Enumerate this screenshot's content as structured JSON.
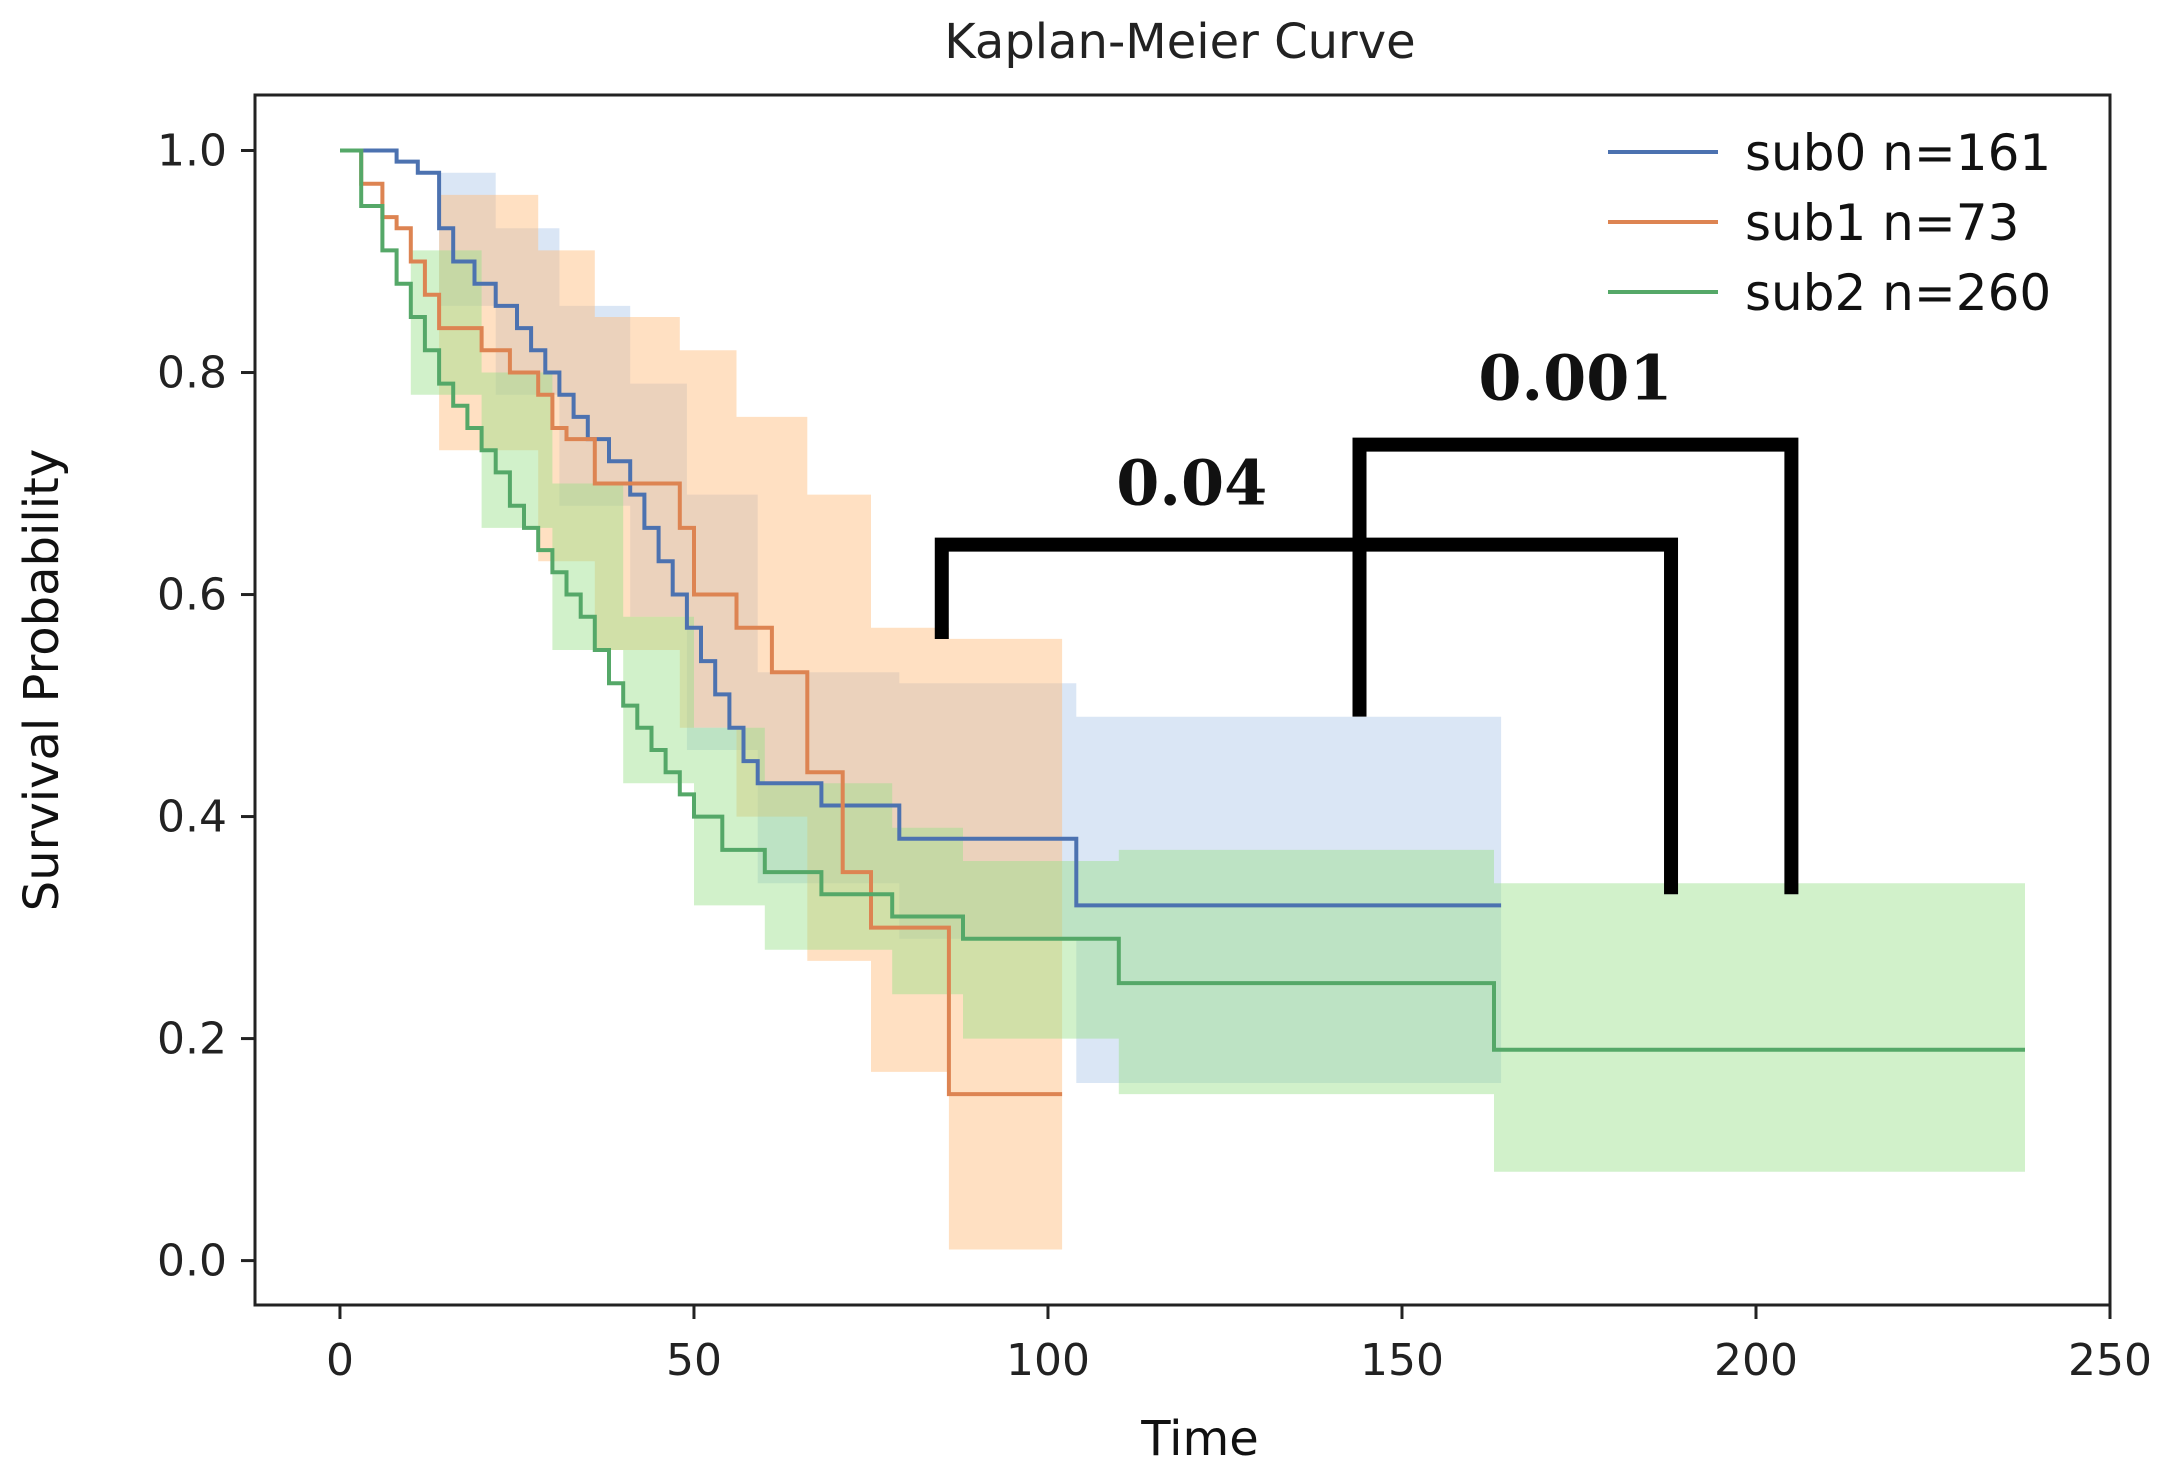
{
  "chart_data": {
    "type": "line",
    "subtype": "kaplan-meier-step",
    "title": "Kaplan-Meier Curve",
    "xlabel": "Time",
    "ylabel": "Survival Probability",
    "xlim": [
      -12,
      250
    ],
    "ylim": [
      -0.04,
      1.05
    ],
    "xticks": [
      0,
      50,
      100,
      150,
      200,
      250
    ],
    "yticks": [
      0.0,
      0.2,
      0.4,
      0.6,
      0.8,
      1.0
    ],
    "xtick_labels": [
      "0",
      "50",
      "100",
      "150",
      "200",
      "250"
    ],
    "ytick_labels": [
      "0.0",
      "0.2",
      "0.4",
      "0.6",
      "0.8",
      "1.0"
    ],
    "legend_position": "top-right",
    "series": [
      {
        "name": "sub0",
        "legend_label": "sub0  n=161",
        "n": 161,
        "color": "#4c72b0",
        "ci_color": "#aec7e8",
        "points": [
          [
            0,
            1.0
          ],
          [
            5,
            1.0
          ],
          [
            8,
            0.99
          ],
          [
            11,
            0.98
          ],
          [
            14,
            0.93
          ],
          [
            16,
            0.9
          ],
          [
            19,
            0.88
          ],
          [
            22,
            0.86
          ],
          [
            25,
            0.84
          ],
          [
            27,
            0.82
          ],
          [
            29,
            0.8
          ],
          [
            31,
            0.78
          ],
          [
            33,
            0.76
          ],
          [
            35,
            0.74
          ],
          [
            38,
            0.72
          ],
          [
            41,
            0.69
          ],
          [
            43,
            0.66
          ],
          [
            45,
            0.63
          ],
          [
            47,
            0.6
          ],
          [
            49,
            0.57
          ],
          [
            51,
            0.54
          ],
          [
            53,
            0.51
          ],
          [
            55,
            0.48
          ],
          [
            57,
            0.45
          ],
          [
            59,
            0.43
          ],
          [
            68,
            0.41
          ],
          [
            79,
            0.38
          ],
          [
            104,
            0.32
          ],
          [
            164,
            0.32
          ]
        ],
        "ci_upper": [
          [
            0,
            1.0
          ],
          [
            14,
            0.98
          ],
          [
            22,
            0.93
          ],
          [
            31,
            0.86
          ],
          [
            41,
            0.79
          ],
          [
            49,
            0.69
          ],
          [
            59,
            0.53
          ],
          [
            79,
            0.52
          ],
          [
            104,
            0.49
          ],
          [
            164,
            0.49
          ]
        ],
        "ci_lower": [
          [
            0,
            1.0
          ],
          [
            14,
            0.86
          ],
          [
            22,
            0.78
          ],
          [
            31,
            0.68
          ],
          [
            41,
            0.58
          ],
          [
            49,
            0.46
          ],
          [
            59,
            0.34
          ],
          [
            79,
            0.29
          ],
          [
            104,
            0.16
          ],
          [
            164,
            0.16
          ]
        ]
      },
      {
        "name": "sub1",
        "legend_label": "sub1  n=73",
        "n": 73,
        "color": "#dd8452",
        "ci_color": "#ffbb78",
        "points": [
          [
            0,
            1.0
          ],
          [
            3,
            0.97
          ],
          [
            6,
            0.94
          ],
          [
            8,
            0.93
          ],
          [
            10,
            0.9
          ],
          [
            12,
            0.87
          ],
          [
            14,
            0.84
          ],
          [
            20,
            0.82
          ],
          [
            24,
            0.8
          ],
          [
            28,
            0.78
          ],
          [
            30,
            0.75
          ],
          [
            32,
            0.74
          ],
          [
            36,
            0.7
          ],
          [
            43,
            0.7
          ],
          [
            48,
            0.66
          ],
          [
            50,
            0.6
          ],
          [
            56,
            0.57
          ],
          [
            61,
            0.53
          ],
          [
            66,
            0.44
          ],
          [
            71,
            0.35
          ],
          [
            75,
            0.3
          ],
          [
            86,
            0.15
          ],
          [
            102,
            0.15
          ]
        ],
        "ci_upper": [
          [
            0,
            1.0
          ],
          [
            14,
            0.96
          ],
          [
            28,
            0.91
          ],
          [
            36,
            0.85
          ],
          [
            48,
            0.82
          ],
          [
            56,
            0.76
          ],
          [
            66,
            0.69
          ],
          [
            75,
            0.57
          ],
          [
            86,
            0.56
          ],
          [
            102,
            0.45
          ]
        ],
        "ci_lower": [
          [
            0,
            1.0
          ],
          [
            14,
            0.73
          ],
          [
            28,
            0.63
          ],
          [
            36,
            0.55
          ],
          [
            48,
            0.48
          ],
          [
            56,
            0.4
          ],
          [
            66,
            0.27
          ],
          [
            75,
            0.17
          ],
          [
            86,
            0.01
          ],
          [
            102,
            0.01
          ]
        ]
      },
      {
        "name": "sub2",
        "legend_label": "sub2  n=260",
        "n": 260,
        "color": "#55a868",
        "ci_color": "#98df8a",
        "points": [
          [
            0,
            1.0
          ],
          [
            3,
            0.95
          ],
          [
            6,
            0.91
          ],
          [
            8,
            0.88
          ],
          [
            10,
            0.85
          ],
          [
            12,
            0.82
          ],
          [
            14,
            0.79
          ],
          [
            16,
            0.77
          ],
          [
            18,
            0.75
          ],
          [
            20,
            0.73
          ],
          [
            22,
            0.71
          ],
          [
            24,
            0.68
          ],
          [
            26,
            0.66
          ],
          [
            28,
            0.64
          ],
          [
            30,
            0.62
          ],
          [
            32,
            0.6
          ],
          [
            34,
            0.58
          ],
          [
            36,
            0.55
          ],
          [
            38,
            0.52
          ],
          [
            40,
            0.5
          ],
          [
            42,
            0.48
          ],
          [
            44,
            0.46
          ],
          [
            46,
            0.44
          ],
          [
            48,
            0.42
          ],
          [
            50,
            0.4
          ],
          [
            54,
            0.37
          ],
          [
            60,
            0.35
          ],
          [
            68,
            0.33
          ],
          [
            78,
            0.31
          ],
          [
            88,
            0.29
          ],
          [
            110,
            0.25
          ],
          [
            163,
            0.19
          ],
          [
            238,
            0.19
          ]
        ],
        "ci_upper": [
          [
            0,
            1.0
          ],
          [
            10,
            0.91
          ],
          [
            20,
            0.8
          ],
          [
            30,
            0.7
          ],
          [
            40,
            0.58
          ],
          [
            50,
            0.48
          ],
          [
            60,
            0.43
          ],
          [
            78,
            0.39
          ],
          [
            88,
            0.36
          ],
          [
            110,
            0.37
          ],
          [
            163,
            0.34
          ],
          [
            238,
            0.34
          ]
        ],
        "ci_lower": [
          [
            0,
            1.0
          ],
          [
            10,
            0.78
          ],
          [
            20,
            0.66
          ],
          [
            30,
            0.55
          ],
          [
            40,
            0.43
          ],
          [
            50,
            0.32
          ],
          [
            60,
            0.28
          ],
          [
            78,
            0.24
          ],
          [
            88,
            0.2
          ],
          [
            110,
            0.15
          ],
          [
            163,
            0.08
          ],
          [
            238,
            0.08
          ]
        ]
      }
    ],
    "annotations": [
      {
        "label": "0.04",
        "comparison": "sub0 vs sub1 bracket",
        "left_x": 85,
        "left_y_bottom": 0.56,
        "right_x": 188,
        "right_y_bottom": 0.33,
        "top_y": 0.645
      },
      {
        "label": "0.001",
        "comparison": "wide bracket",
        "left_x": 144,
        "left_y_bottom": 0.49,
        "right_x": 205,
        "right_y_bottom": 0.33,
        "top_y": 0.735
      }
    ]
  }
}
